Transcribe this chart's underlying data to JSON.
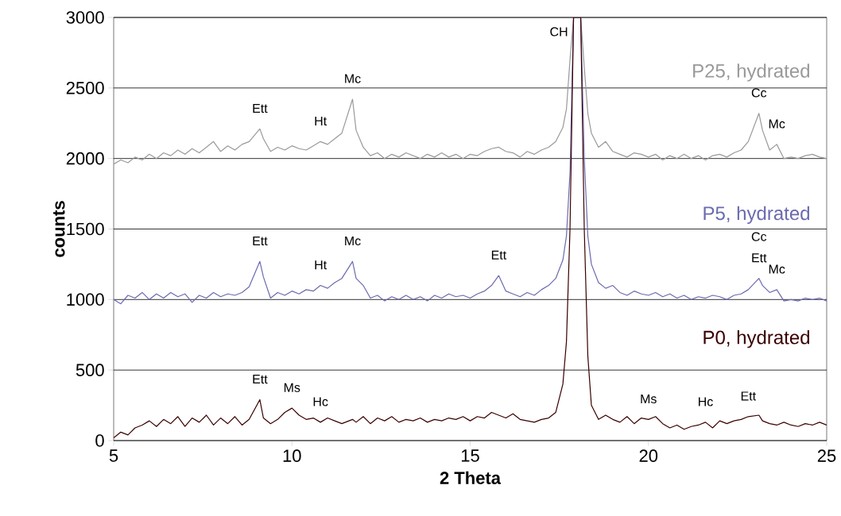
{
  "chart_data": {
    "type": "line",
    "xlabel": "2 Theta",
    "ylabel": "counts",
    "xlim": [
      5,
      25
    ],
    "ylim": [
      0,
      3000
    ],
    "xticks": [
      5,
      10,
      15,
      20,
      25
    ],
    "yticks": [
      0,
      500,
      1000,
      1500,
      2000,
      2500,
      3000
    ],
    "grid": "y",
    "legend": false,
    "marker": "none",
    "line_style": "solid",
    "x": [
      5.0,
      5.2,
      5.4,
      5.6,
      5.8,
      6.0,
      6.2,
      6.4,
      6.6,
      6.8,
      7.0,
      7.2,
      7.4,
      7.6,
      7.8,
      8.0,
      8.2,
      8.4,
      8.6,
      8.8,
      9.1,
      9.2,
      9.4,
      9.6,
      9.8,
      10.0,
      10.2,
      10.4,
      10.6,
      10.8,
      11.0,
      11.2,
      11.4,
      11.7,
      11.8,
      12.0,
      12.2,
      12.4,
      12.6,
      12.8,
      13.0,
      13.2,
      13.4,
      13.6,
      13.8,
      14.0,
      14.2,
      14.4,
      14.6,
      14.8,
      15.0,
      15.2,
      15.4,
      15.6,
      15.8,
      16.0,
      16.2,
      16.4,
      16.6,
      16.8,
      17.0,
      17.2,
      17.4,
      17.6,
      17.7,
      17.8,
      17.9,
      18.0,
      18.1,
      18.2,
      18.3,
      18.4,
      18.6,
      18.8,
      19.0,
      19.2,
      19.4,
      19.6,
      19.8,
      20.0,
      20.2,
      20.4,
      20.6,
      20.8,
      21.0,
      21.2,
      21.4,
      21.6,
      21.8,
      22.0,
      22.2,
      22.4,
      22.6,
      22.8,
      23.1,
      23.2,
      23.4,
      23.6,
      23.8,
      24.0,
      24.2,
      24.4,
      24.6,
      24.8,
      25.0
    ],
    "series": [
      {
        "name": "P25, hydrated",
        "color": "#999999",
        "values": [
          1960,
          1990,
          1970,
          2010,
          1990,
          2030,
          2000,
          2040,
          2020,
          2060,
          2030,
          2070,
          2040,
          2080,
          2120,
          2050,
          2090,
          2060,
          2100,
          2120,
          2210,
          2140,
          2050,
          2080,
          2060,
          2090,
          2070,
          2060,
          2090,
          2120,
          2100,
          2140,
          2180,
          2420,
          2200,
          2080,
          2020,
          2040,
          2000,
          2030,
          2010,
          2040,
          2020,
          2000,
          2030,
          2010,
          2040,
          2010,
          2030,
          2000,
          2030,
          2020,
          2050,
          2070,
          2080,
          2050,
          2040,
          2010,
          2050,
          2030,
          2060,
          2080,
          2120,
          2220,
          2350,
          2700,
          3000,
          3000,
          3000,
          2650,
          2320,
          2180,
          2080,
          2120,
          2050,
          2030,
          2010,
          2040,
          2030,
          2010,
          2030,
          1990,
          2020,
          2000,
          2030,
          2000,
          2020,
          1990,
          2020,
          2030,
          2010,
          2040,
          2060,
          2120,
          2320,
          2200,
          2060,
          2100,
          2000,
          2010,
          2000,
          2020,
          2030,
          2010,
          2000
        ]
      },
      {
        "name": "P5, hydrated",
        "color": "#6a6ab0",
        "values": [
          1000,
          970,
          1030,
          1010,
          1050,
          1000,
          1040,
          1010,
          1050,
          1020,
          1040,
          980,
          1030,
          1010,
          1050,
          1020,
          1040,
          1030,
          1050,
          1090,
          1270,
          1160,
          1010,
          1050,
          1030,
          1060,
          1040,
          1070,
          1060,
          1100,
          1080,
          1120,
          1150,
          1270,
          1150,
          1100,
          1010,
          1030,
          990,
          1020,
          1000,
          1030,
          1000,
          1020,
          990,
          1030,
          1010,
          1040,
          1020,
          1030,
          1010,
          1040,
          1060,
          1100,
          1170,
          1060,
          1040,
          1020,
          1050,
          1030,
          1070,
          1100,
          1150,
          1280,
          1450,
          1900,
          3000,
          3000,
          3000,
          2000,
          1450,
          1250,
          1120,
          1080,
          1100,
          1050,
          1030,
          1060,
          1040,
          1030,
          1050,
          1020,
          1040,
          1010,
          1030,
          1000,
          1020,
          1010,
          1030,
          1020,
          1000,
          1030,
          1040,
          1070,
          1150,
          1100,
          1050,
          1070,
          990,
          1000,
          990,
          1010,
          1000,
          1010,
          990
        ]
      },
      {
        "name": "P0, hydrated",
        "color": "#3a0000",
        "values": [
          20,
          60,
          40,
          90,
          110,
          140,
          100,
          150,
          120,
          170,
          100,
          160,
          130,
          180,
          110,
          160,
          120,
          170,
          110,
          150,
          290,
          160,
          120,
          150,
          200,
          230,
          180,
          150,
          160,
          130,
          160,
          140,
          120,
          150,
          130,
          170,
          120,
          160,
          140,
          170,
          130,
          150,
          140,
          160,
          130,
          150,
          140,
          160,
          150,
          170,
          140,
          170,
          160,
          200,
          180,
          160,
          190,
          150,
          140,
          130,
          150,
          160,
          200,
          400,
          700,
          1500,
          3000,
          3000,
          3000,
          1500,
          600,
          250,
          150,
          180,
          150,
          130,
          170,
          120,
          160,
          150,
          170,
          120,
          90,
          110,
          80,
          100,
          110,
          130,
          90,
          140,
          120,
          140,
          150,
          170,
          180,
          140,
          120,
          110,
          130,
          110,
          100,
          120,
          110,
          130,
          110
        ]
      }
    ],
    "annotations": [
      {
        "text": "CH",
        "x": 17.9,
        "y": 3000
      },
      {
        "text": "Ett",
        "x": 9.1,
        "y": 2210
      },
      {
        "text": "Ht",
        "x": 10.8,
        "y": 2120
      },
      {
        "text": "Mc",
        "x": 11.7,
        "y": 2420
      },
      {
        "text": "Cc",
        "x": 23.1,
        "y": 2320
      },
      {
        "text": "Mc",
        "x": 23.6,
        "y": 2100
      },
      {
        "text": "Ett",
        "x": 9.1,
        "y": 1270
      },
      {
        "text": "Ht",
        "x": 10.8,
        "y": 1100
      },
      {
        "text": "Mc",
        "x": 11.7,
        "y": 1270
      },
      {
        "text": "Ett",
        "x": 15.8,
        "y": 1170
      },
      {
        "text": "Cc",
        "x": 23.1,
        "y": 1150
      },
      {
        "text": "Ett",
        "x": 23.1,
        "y": 1150
      },
      {
        "text": "Mc",
        "x": 23.6,
        "y": 1070
      },
      {
        "text": "Ett",
        "x": 9.1,
        "y": 290
      },
      {
        "text": "Ms",
        "x": 10.0,
        "y": 230
      },
      {
        "text": "Hc",
        "x": 10.8,
        "y": 130
      },
      {
        "text": "Ms",
        "x": 20.0,
        "y": 150
      },
      {
        "text": "Hc",
        "x": 21.6,
        "y": 130
      },
      {
        "text": "Ett",
        "x": 22.8,
        "y": 170
      }
    ]
  }
}
